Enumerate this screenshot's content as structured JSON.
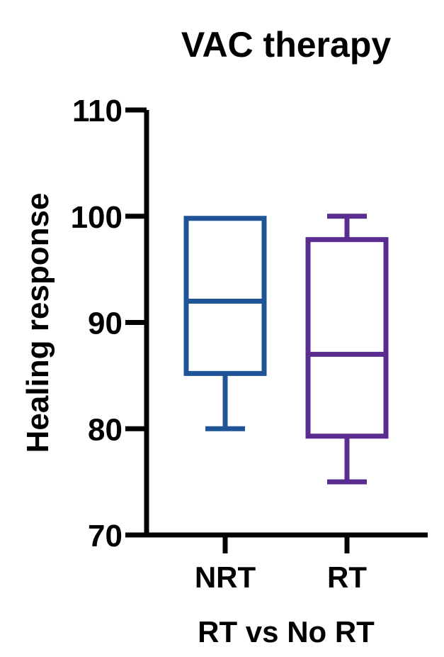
{
  "chart_data": {
    "type": "box",
    "title": "VAC therapy",
    "xlabel": "RT vs No RT",
    "ylabel": "Healing response",
    "ylim": [
      70,
      110
    ],
    "yticks": [
      70,
      80,
      90,
      100,
      110
    ],
    "grid": false,
    "categories": [
      "NRT",
      "RT"
    ],
    "series": [
      {
        "category": "NRT",
        "min": 80,
        "q1": 85.2,
        "median": 92,
        "q3": 99.8,
        "max": 99.8,
        "color": "#1F5597"
      },
      {
        "category": "RT",
        "min": 75,
        "q1": 79.3,
        "median": 87,
        "q3": 97.8,
        "max": 100,
        "color": "#5B2C8F"
      }
    ]
  }
}
